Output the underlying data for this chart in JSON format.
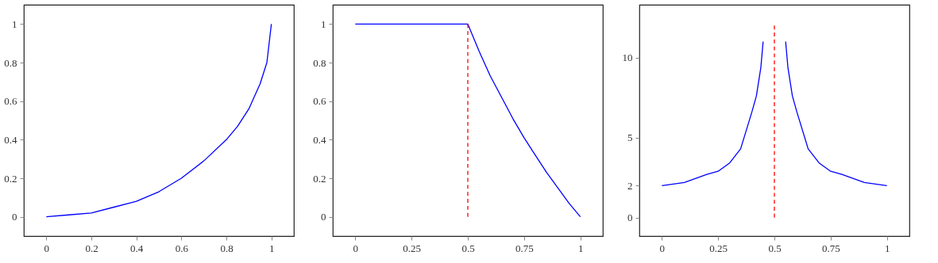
{
  "chart_data": [
    {
      "type": "line",
      "xlim": [
        -0.1,
        1.1
      ],
      "ylim": [
        -0.1,
        1.1
      ],
      "xticks": [
        0,
        0.2,
        0.4,
        0.6,
        0.8,
        1
      ],
      "yticks": [
        0,
        0.2,
        0.4,
        0.6,
        0.8,
        1
      ],
      "x": [
        0,
        0.1,
        0.2,
        0.3,
        0.4,
        0.5,
        0.6,
        0.7,
        0.8,
        0.85,
        0.9,
        0.95,
        0.98,
        1
      ],
      "series": [
        {
          "color": "#0000ff",
          "values": [
            0,
            0.01,
            0.02,
            0.05,
            0.08,
            0.13,
            0.2,
            0.29,
            0.4,
            0.47,
            0.56,
            0.69,
            0.8,
            1
          ]
        }
      ]
    },
    {
      "type": "line",
      "xlim": [
        -0.1,
        1.1
      ],
      "ylim": [
        -0.1,
        1.1
      ],
      "xticks": [
        0,
        0.25,
        0.5,
        0.75,
        1
      ],
      "yticks": [
        0,
        0.2,
        0.4,
        0.6,
        0.8,
        1
      ],
      "series": [
        {
          "color": "#0000ff",
          "x": [
            0,
            0.5,
            0.55,
            0.6,
            0.65,
            0.7,
            0.75,
            0.8,
            0.85,
            0.9,
            0.95,
            1
          ],
          "values": [
            1,
            1,
            0.86,
            0.73,
            0.62,
            0.51,
            0.41,
            0.32,
            0.23,
            0.15,
            0.07,
            0
          ]
        },
        {
          "color": "#ff0000",
          "line_style": "dashed",
          "x": [
            0.5,
            0.5
          ],
          "values": [
            0,
            1
          ]
        }
      ]
    },
    {
      "type": "line",
      "xlim": [
        -0.1,
        1.1
      ],
      "ylim": [
        -1.15,
        13.3
      ],
      "xticks": [
        0,
        0.25,
        0.5,
        0.75,
        1
      ],
      "yticks": [
        0,
        2,
        5,
        10
      ],
      "series": [
        {
          "color": "#0000ff",
          "x": [
            0,
            0.1,
            0.2,
            0.25,
            0.3,
            0.35,
            0.4,
            0.42,
            0.44,
            0.45
          ],
          "values": [
            2,
            2.2,
            2.7,
            2.9,
            3.4,
            4.3,
            6.6,
            7.6,
            9.4,
            11
          ]
        },
        {
          "color": "#0000ff",
          "x": [
            0.55,
            0.56,
            0.58,
            0.6,
            0.65,
            0.7,
            0.75,
            0.8,
            0.9,
            1
          ],
          "values": [
            11,
            9.4,
            7.6,
            6.6,
            4.3,
            3.4,
            2.9,
            2.7,
            2.2,
            2
          ]
        },
        {
          "color": "#ff0000",
          "line_style": "dashed",
          "x": [
            0.5,
            0.5
          ],
          "values": [
            0,
            12
          ]
        }
      ]
    }
  ]
}
